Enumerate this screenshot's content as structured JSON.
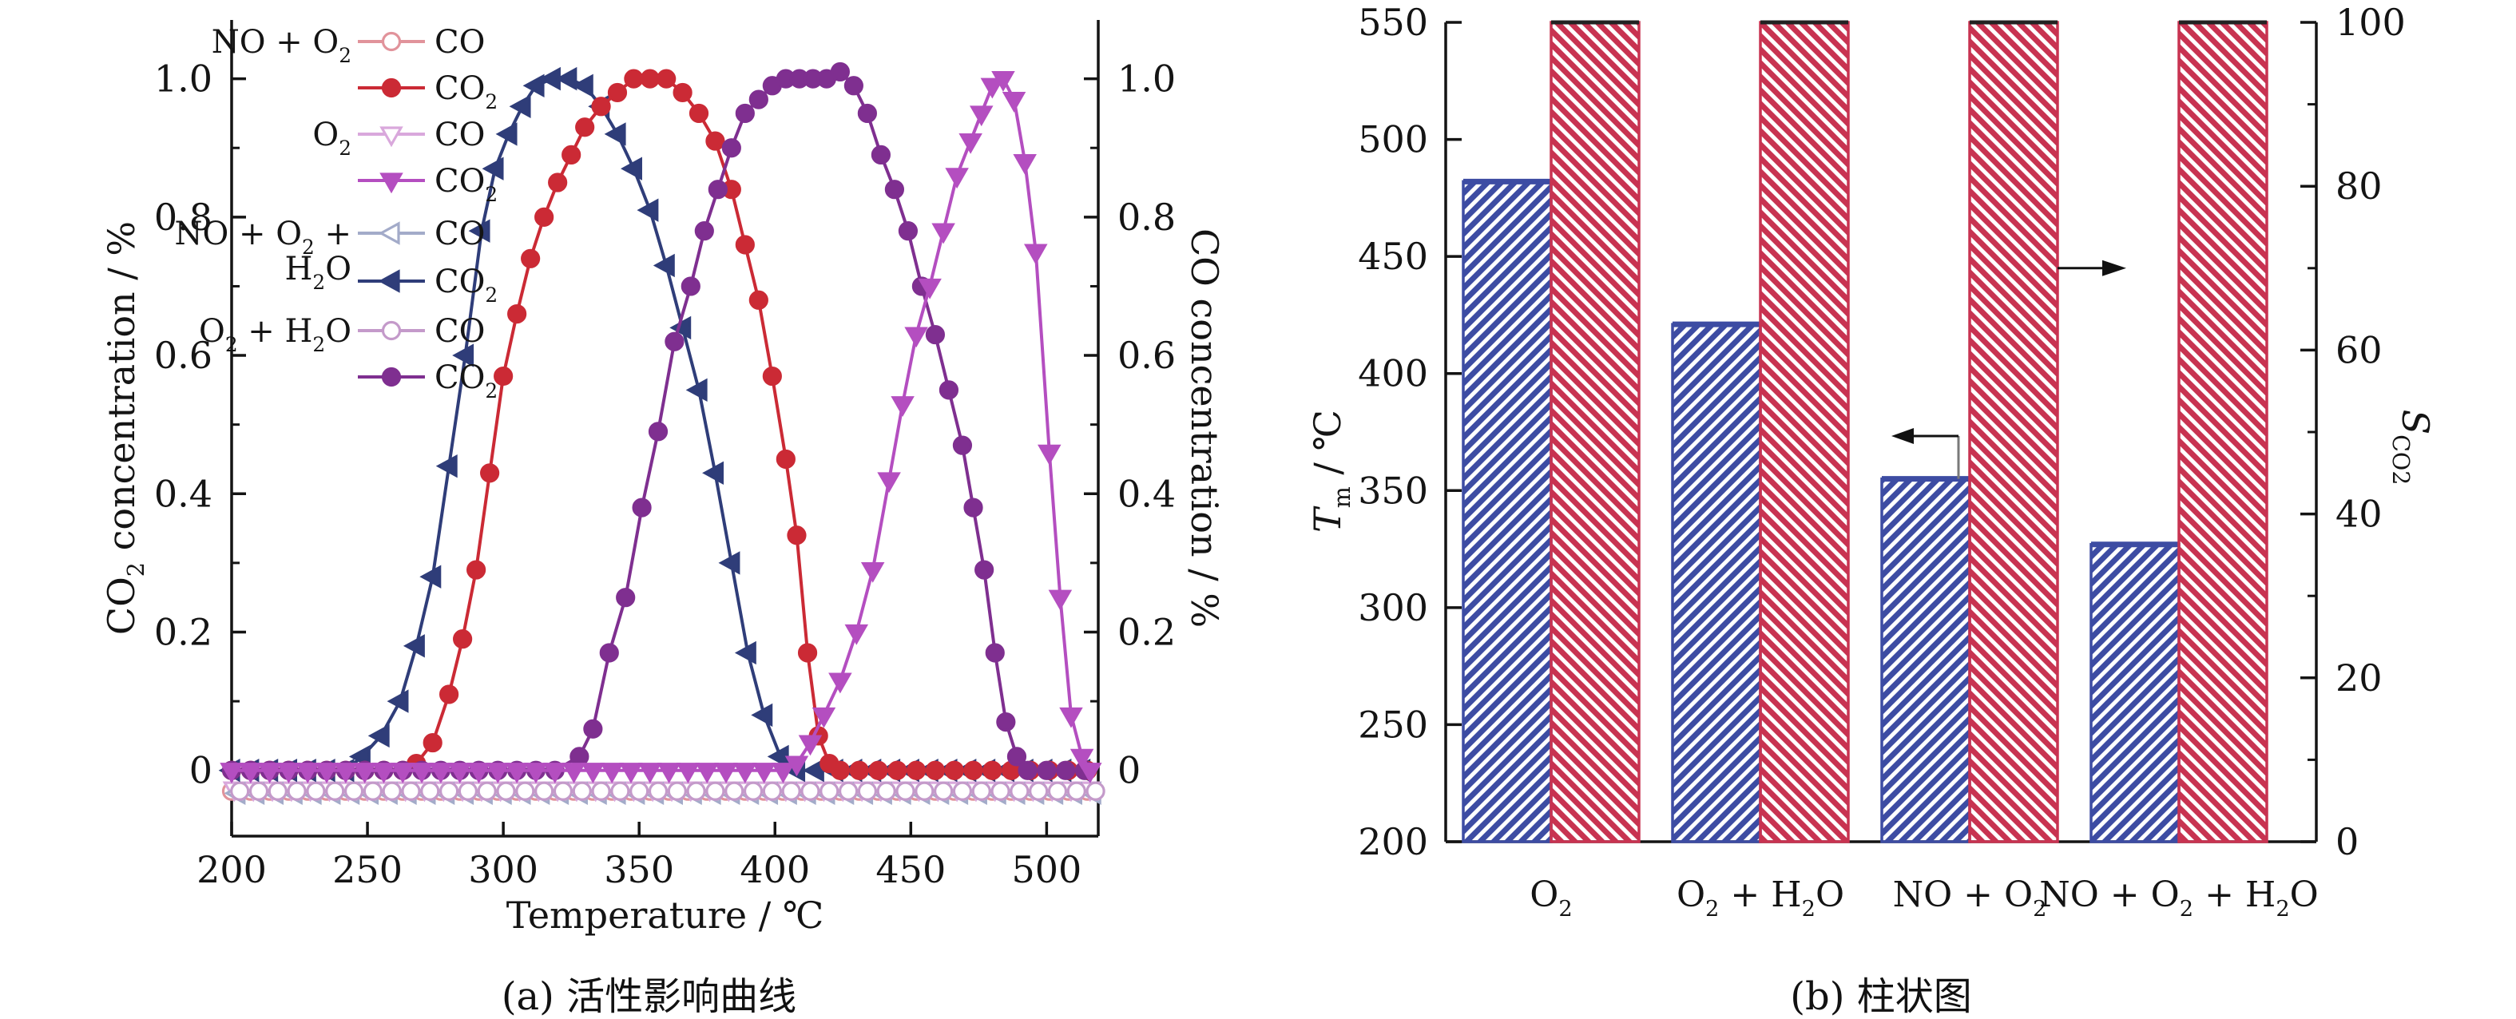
{
  "figure_title": "",
  "chart_data": [
    {
      "id": "a",
      "type": "line",
      "caption": "(a) 活性影响曲线",
      "xlabel": "Temperature / ℃",
      "ylabel_left": "CO_{2} concentration / %",
      "ylabel_right": "CO concentration / %",
      "xlim": [
        200,
        519
      ],
      "ylim": [
        -0.095,
        1.085
      ],
      "xticks": [
        200,
        250,
        300,
        350,
        400,
        450,
        500
      ],
      "yticks_major": [
        0,
        0.2,
        0.4,
        0.6,
        0.8,
        1.0
      ],
      "ytick_labels": [
        "0",
        "0.2",
        "0.4",
        "0.6",
        "0.8",
        "1.0"
      ],
      "yticks_minor": [
        0.1,
        0.3,
        0.5,
        0.7,
        0.9
      ],
      "grid": false,
      "legend_position": "upper-left-inside",
      "pad": {
        "start": 200,
        "end": 516,
        "step": 7
      },
      "legend_rows": [
        {
          "group_lines": [
            "NO + O_{2}"
          ],
          "label": "CO",
          "marker": "circle",
          "open": true,
          "color": "#e1939b"
        },
        {
          "group_lines": [],
          "label": "CO_{2}",
          "marker": "circle",
          "open": false,
          "color": "#cb2a35"
        },
        {
          "group_lines": [
            "O_{2}"
          ],
          "label": "CO",
          "marker": "tri-down",
          "open": true,
          "color": "#d9a8dc"
        },
        {
          "group_lines": [],
          "label": "CO_{2}",
          "marker": "tri-down",
          "open": false,
          "color": "#b44ec0"
        },
        {
          "group_lines": [
            "NO + O_{2} +",
            "H_{2}O"
          ],
          "label": "CO",
          "marker": "tri-left",
          "open": true,
          "color": "#a3abc9"
        },
        {
          "group_lines": [],
          "label": "CO_{2}",
          "marker": "tri-left",
          "open": false,
          "color": "#2f3d79"
        },
        {
          "group_lines": [
            "O_{2} + H_{2}O"
          ],
          "label": "CO",
          "marker": "circle",
          "open": true,
          "color": "#c49aca"
        },
        {
          "group_lines": [],
          "label": "CO_{2}",
          "marker": "circle",
          "open": false,
          "color": "#7f2f90"
        }
      ],
      "series": [
        {
          "group": "NO + O_{2}",
          "name": "CO",
          "marker": "circle",
          "open": true,
          "color": "#e1939b",
          "flat": {
            "y": 0,
            "y_draw": -0.03,
            "x_start": 200,
            "x_end": 516,
            "step": 7,
            "x_offset": 0
          }
        },
        {
          "group": "O_{2}",
          "name": "CO",
          "marker": "tri-down",
          "open": true,
          "color": "#d9a8dc",
          "flat": {
            "y": 0,
            "y_draw": -0.027,
            "x_start": 200,
            "x_end": 516,
            "step": 7,
            "x_offset": 2
          }
        },
        {
          "group": "NO + O_{2} + H_{2}O",
          "name": "CO",
          "marker": "tri-left",
          "open": true,
          "color": "#a3abc9",
          "flat": {
            "y": 0,
            "y_draw": -0.033,
            "x_start": 200,
            "x_end": 516,
            "step": 7,
            "x_offset": 4
          }
        },
        {
          "group": "O_{2} + H_{2}O",
          "name": "CO",
          "marker": "circle",
          "open": true,
          "color": "#c49aca",
          "flat": {
            "y": 0,
            "y_draw": -0.03,
            "x_start": 200,
            "x_end": 516,
            "step": 7,
            "x_offset": 6
          }
        },
        {
          "group": "NO + O_{2} + H_{2}O",
          "name": "CO_{2}",
          "marker": "tri-left",
          "open": false,
          "color": "#2f3d79",
          "points": [
            [
              248,
              0.02
            ],
            [
              255,
              0.05
            ],
            [
              262,
              0.1
            ],
            [
              268,
              0.18
            ],
            [
              274,
              0.28
            ],
            [
              280,
              0.44
            ],
            [
              286,
              0.6
            ],
            [
              292,
              0.78
            ],
            [
              297,
              0.87
            ],
            [
              302,
              0.92
            ],
            [
              307,
              0.96
            ],
            [
              312,
              0.99
            ],
            [
              318,
              1.0
            ],
            [
              324,
              1.0
            ],
            [
              330,
              0.99
            ],
            [
              336,
              0.96
            ],
            [
              342,
              0.92
            ],
            [
              348,
              0.87
            ],
            [
              354,
              0.81
            ],
            [
              360,
              0.73
            ],
            [
              366,
              0.64
            ],
            [
              372,
              0.55
            ],
            [
              378,
              0.43
            ],
            [
              384,
              0.3
            ],
            [
              390,
              0.17
            ],
            [
              396,
              0.08
            ],
            [
              402,
              0.02
            ],
            [
              408,
              0.0
            ]
          ]
        },
        {
          "group": "NO + O_{2}",
          "name": "CO_{2}",
          "marker": "circle",
          "open": false,
          "color": "#cb2a35",
          "points": [
            [
              268,
              0.01
            ],
            [
              274,
              0.04
            ],
            [
              280,
              0.11
            ],
            [
              285,
              0.19
            ],
            [
              290,
              0.29
            ],
            [
              295,
              0.43
            ],
            [
              300,
              0.57
            ],
            [
              305,
              0.66
            ],
            [
              310,
              0.74
            ],
            [
              315,
              0.8
            ],
            [
              320,
              0.85
            ],
            [
              325,
              0.89
            ],
            [
              330,
              0.93
            ],
            [
              336,
              0.96
            ],
            [
              342,
              0.98
            ],
            [
              348,
              1.0
            ],
            [
              354,
              1.0
            ],
            [
              360,
              1.0
            ],
            [
              366,
              0.98
            ],
            [
              372,
              0.95
            ],
            [
              378,
              0.91
            ],
            [
              384,
              0.84
            ],
            [
              389,
              0.76
            ],
            [
              394,
              0.68
            ],
            [
              399,
              0.57
            ],
            [
              404,
              0.45
            ],
            [
              408,
              0.34
            ],
            [
              412,
              0.17
            ],
            [
              416,
              0.05
            ],
            [
              420,
              0.01
            ],
            [
              424,
              0.0
            ]
          ]
        },
        {
          "group": "O_{2} + H_{2}O",
          "name": "CO_{2}",
          "marker": "circle",
          "open": false,
          "color": "#7f2f90",
          "points": [
            [
              328,
              0.02
            ],
            [
              333,
              0.06
            ],
            [
              339,
              0.17
            ],
            [
              345,
              0.25
            ],
            [
              351,
              0.38
            ],
            [
              357,
              0.49
            ],
            [
              363,
              0.62
            ],
            [
              369,
              0.7
            ],
            [
              374,
              0.78
            ],
            [
              379,
              0.84
            ],
            [
              384,
              0.9
            ],
            [
              389,
              0.95
            ],
            [
              394,
              0.97
            ],
            [
              399,
              0.99
            ],
            [
              404,
              1.0
            ],
            [
              409,
              1.0
            ],
            [
              414,
              1.0
            ],
            [
              419,
              1.0
            ],
            [
              424,
              1.01
            ],
            [
              429,
              0.99
            ],
            [
              434,
              0.95
            ],
            [
              439,
              0.89
            ],
            [
              444,
              0.84
            ],
            [
              449,
              0.78
            ],
            [
              454,
              0.7
            ],
            [
              459,
              0.63
            ],
            [
              464,
              0.55
            ],
            [
              469,
              0.47
            ],
            [
              473,
              0.38
            ],
            [
              477,
              0.29
            ],
            [
              481,
              0.17
            ],
            [
              485,
              0.07
            ],
            [
              489,
              0.02
            ],
            [
              493,
              0.0
            ]
          ]
        },
        {
          "group": "O_{2}",
          "name": "CO_{2}",
          "marker": "tri-down",
          "open": false,
          "color": "#b44ec0",
          "points": [
            [
              408,
              0.01
            ],
            [
              413,
              0.04
            ],
            [
              418,
              0.08
            ],
            [
              424,
              0.13
            ],
            [
              430,
              0.2
            ],
            [
              436,
              0.29
            ],
            [
              442,
              0.42
            ],
            [
              447,
              0.53
            ],
            [
              452,
              0.63
            ],
            [
              457,
              0.7
            ],
            [
              462,
              0.78
            ],
            [
              467,
              0.86
            ],
            [
              472,
              0.91
            ],
            [
              476,
              0.95
            ],
            [
              480,
              0.99
            ],
            [
              484,
              1.0
            ],
            [
              488,
              0.97
            ],
            [
              492,
              0.88
            ],
            [
              496,
              0.75
            ],
            [
              501,
              0.46
            ],
            [
              505,
              0.25
            ],
            [
              509,
              0.08
            ],
            [
              513,
              0.02
            ],
            [
              516,
              0.0
            ]
          ]
        }
      ]
    },
    {
      "id": "b",
      "type": "bar",
      "caption": "(b) 柱状图",
      "ylabel_left": "*T*_{m} / ℃",
      "ylabel_right": "*S*_{CO2}",
      "ylim_left": [
        200,
        550
      ],
      "yticks_left": [
        200,
        250,
        300,
        350,
        400,
        450,
        500,
        550
      ],
      "ylim_right": [
        0,
        100
      ],
      "yticks_right": [
        0,
        20,
        40,
        60,
        80,
        100
      ],
      "yticks_right_minor": [
        10,
        30,
        50,
        70,
        90
      ],
      "categories": [
        "O_{2}",
        "O_{2} + H_{2}O",
        "NO + O_{2}",
        "NO + O_{2} + H_{2}O"
      ],
      "series": [
        {
          "name": "T_{m}",
          "axis": "left",
          "color": "#3d4ca3",
          "hatch": "/",
          "values": [
            482,
            421,
            355,
            327
          ]
        },
        {
          "name": "S_{CO2}",
          "axis": "right",
          "color": "#c83351",
          "hatch": "\\",
          "values": [
            100,
            100,
            100,
            100
          ]
        }
      ],
      "annotations": [
        {
          "name": "left-axis-pointer",
          "from_series": "T_{m}",
          "category": "NO + O_{2}",
          "direction": "left"
        },
        {
          "name": "right-axis-pointer",
          "from_series": "S_{CO2}",
          "category": "NO + O_{2}",
          "direction": "right",
          "at_right_value": 70
        }
      ]
    }
  ]
}
